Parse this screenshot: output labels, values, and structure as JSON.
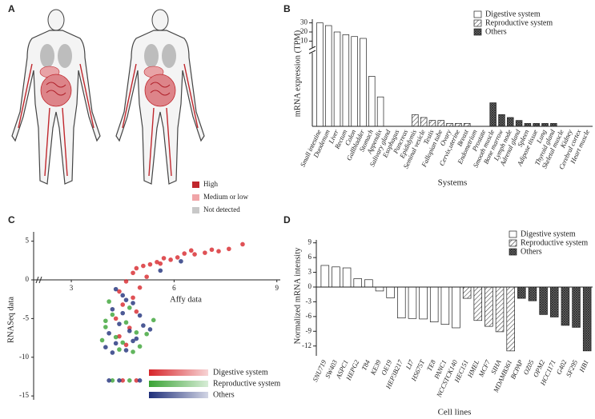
{
  "panel_labels": [
    "A",
    "B",
    "C",
    "D"
  ],
  "body_map": {
    "legend": [
      {
        "label": "High",
        "color": "#c0272d"
      },
      {
        "label": "Medium or low",
        "color": "#f0a5a8"
      },
      {
        "label": "Not detected",
        "color": "#c8c8c8"
      }
    ]
  },
  "chart_data": [
    {
      "type": "bar",
      "y_label": "mRNA expression (TPM)",
      "x_label": "Systems",
      "categories": [
        "Small intestine",
        "Duodenum",
        "Liver",
        "Rectum",
        "Colon",
        "Gallbladder",
        "Stomach",
        "Appendix",
        "Salivary gland",
        "Esophagus",
        "Pancreas",
        "Epididymis",
        "Seminal vesicle",
        "Testis",
        "Fallopian tube",
        "Ovary",
        "Cervix,uterine",
        "Breast",
        "Endometrium",
        "Prostate",
        "Smooth muscle",
        "Bone marrow",
        "Lymph node",
        "Adrenal gland",
        "Spleen",
        "Adipose tissue",
        "Lung",
        "Thyroid gland",
        "Skeletal muscle",
        "Kidney",
        "Cerebral cortex",
        "Heart muscle"
      ],
      "series": [
        {
          "name": "Digestive system",
          "color": "#ffffff",
          "pattern": "none",
          "values": [
            30,
            27,
            20,
            17,
            15,
            13,
            1.7,
            1.0,
            0,
            0,
            0,
            null,
            null,
            null,
            null,
            null,
            null,
            null,
            null,
            null,
            null,
            null,
            null,
            null,
            null,
            null,
            null,
            null,
            null,
            null,
            null,
            null
          ]
        },
        {
          "name": "Reproductive system",
          "color": "#999999",
          "pattern": "diagonal",
          "values": [
            null,
            null,
            null,
            null,
            null,
            null,
            null,
            null,
            null,
            null,
            null,
            0.4,
            0.3,
            0.2,
            0.2,
            0.1,
            0.1,
            0.1,
            0,
            0,
            null,
            null,
            null,
            null,
            null,
            null,
            null,
            null,
            null,
            null,
            null,
            null
          ]
        },
        {
          "name": "Others",
          "color": "#555555",
          "pattern": "crosshatch",
          "values": [
            null,
            null,
            null,
            null,
            null,
            null,
            null,
            null,
            null,
            null,
            null,
            null,
            null,
            null,
            null,
            null,
            null,
            null,
            null,
            null,
            0.8,
            0.4,
            0.3,
            0.2,
            0.1,
            0.1,
            0.1,
            0.1,
            0,
            0,
            0,
            0
          ]
        }
      ],
      "ylim": [
        0,
        2.5
      ],
      "ylim_upper": [
        2.5,
        34
      ],
      "yticks": [
        10,
        20,
        30
      ],
      "axis_break": true,
      "legend": "upper right"
    },
    {
      "type": "scatter",
      "x_label": "Affy data",
      "y_label": "RNASeq data",
      "series": [
        {
          "name": "Digestive system",
          "color": "#d7262b",
          "x": [
            8.0,
            7.6,
            7.3,
            6.9,
            6.6,
            6.3,
            6.1,
            5.9,
            5.7,
            5.5,
            5.3,
            5.1,
            4.9,
            4.8,
            5.2,
            4.6,
            5.0,
            4.4,
            4.8,
            4.5,
            4.9,
            4.3,
            4.7,
            4.4,
            4.6,
            4.5,
            4.9,
            6.5,
            7.1,
            5.6
          ],
          "y": [
            4.6,
            4.0,
            3.7,
            3.5,
            3.3,
            3.4,
            2.9,
            2.6,
            2.8,
            2.3,
            2.0,
            1.8,
            1.5,
            0.9,
            0.4,
            -0.2,
            -1.0,
            -1.5,
            -2.3,
            -3.2,
            -4.1,
            -5.0,
            -6.2,
            -7.3,
            -8.4,
            -13.0,
            -13.0,
            3.8,
            3.9,
            2.1
          ]
        },
        {
          "name": "Reproductive system",
          "color": "#3aa335",
          "x": [
            4.2,
            4.6,
            4.0,
            4.9,
            4.3,
            5.2,
            4.5,
            3.9,
            4.7,
            4.1,
            5.4,
            4.4,
            4.8,
            4.2,
            4.7,
            5.0,
            4.0
          ],
          "y": [
            -4.5,
            -5.5,
            -6.1,
            -6.8,
            -7.4,
            -7.0,
            -8.1,
            -7.8,
            -3.6,
            -2.8,
            -5.2,
            -9.0,
            -9.3,
            -13.0,
            -13.0,
            -8.6,
            -5.3
          ]
        },
        {
          "name": "Others",
          "color": "#1f2f7a",
          "x": [
            4.5,
            4.8,
            4.2,
            5.0,
            4.4,
            4.7,
            4.1,
            4.9,
            4.3,
            4.6,
            5.1,
            4.0,
            4.5,
            4.8,
            4.2,
            5.3,
            4.4,
            4.1,
            5.0,
            4.6,
            4.3,
            5.6,
            6.2
          ],
          "y": [
            -2.0,
            -3.0,
            -3.8,
            -4.6,
            -5.7,
            -6.6,
            -6.9,
            -7.6,
            -8.2,
            -9.1,
            -5.9,
            -8.7,
            -4.3,
            -7.9,
            -9.4,
            -6.4,
            -13.0,
            -13.0,
            -13.0,
            -2.6,
            -1.2,
            1.2,
            2.4
          ]
        }
      ],
      "xlim": [
        1.9,
        9.1
      ],
      "ylim": [
        -15.5,
        6.2
      ],
      "xticks": [
        3,
        6,
        9
      ],
      "yticks": [
        5,
        0,
        -5,
        -10,
        -15
      ],
      "axis_break": true,
      "legend": "lower right"
    },
    {
      "type": "bar",
      "y_label": "Normalized mRNA intensity",
      "x_label": "Cell lines",
      "categories": [
        "SNU719",
        "SW403",
        "ASPC1",
        "HEPG2",
        "T84",
        "KE39",
        "OE19",
        "HEP3B217",
        "LI7",
        "HS675T",
        "TE8",
        "PANC1",
        "NCCSTCK140",
        "HEC151",
        "HMEL",
        "MCF7",
        "SIHA",
        "MDAMB361",
        "BCPAP",
        "OZ05",
        "OPM2",
        "HCC1171",
        "G402",
        "SF295",
        "HB1"
      ],
      "series": [
        {
          "name": "Digestive system",
          "color": "#ffffff",
          "pattern": "none",
          "values": [
            4.4,
            4.1,
            3.9,
            1.7,
            1.5,
            -0.8,
            -2.2,
            -6.3,
            -6.4,
            -6.5,
            -7.1,
            -7.6,
            -8.3,
            null,
            null,
            null,
            null,
            null,
            null,
            null,
            null,
            null,
            null,
            null,
            null
          ]
        },
        {
          "name": "Reproductive system",
          "color": "#999999",
          "pattern": "diagonal",
          "values": [
            null,
            null,
            null,
            null,
            null,
            null,
            null,
            null,
            null,
            null,
            null,
            null,
            null,
            -2.3,
            -6.8,
            -8.0,
            -9.1,
            -13.0,
            null,
            null,
            null,
            null,
            null,
            null,
            null
          ]
        },
        {
          "name": "Others",
          "color": "#555555",
          "pattern": "crosshatch",
          "values": [
            null,
            null,
            null,
            null,
            null,
            null,
            null,
            null,
            null,
            null,
            null,
            null,
            null,
            null,
            null,
            null,
            null,
            null,
            -2.3,
            -2.8,
            -5.6,
            -6.1,
            -7.8,
            -8.2,
            -13.0
          ]
        }
      ],
      "ylim": [
        -14,
        9.6
      ],
      "yticks": [
        9,
        6,
        3,
        0,
        -3,
        -6,
        -9,
        -12
      ],
      "legend": "upper right"
    }
  ]
}
